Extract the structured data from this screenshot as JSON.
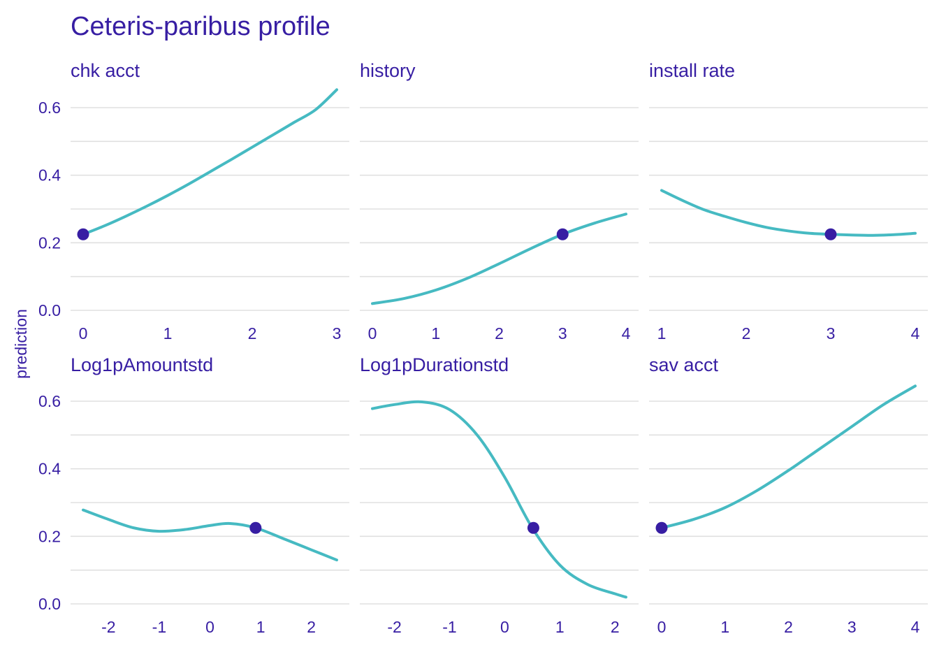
{
  "chart_data": {
    "type": "line",
    "title": "Ceteris-paribus profile",
    "ylabel": "prediction",
    "ylim": [
      0,
      0.6
    ],
    "yticks": [
      0.0,
      0.2,
      0.4,
      0.6
    ],
    "ytick_labels": [
      "0.0",
      "0.2",
      "0.4",
      "0.6"
    ],
    "grid": true,
    "colors": {
      "line": "#46bac2",
      "point": "#371ea3",
      "text": "#371ea3",
      "grid": "#e0e0e0"
    },
    "panels": [
      {
        "name": "chk_acct",
        "label": "chk  acct",
        "xlim": [
          0,
          3
        ],
        "xticks": [
          0,
          1,
          2,
          3
        ],
        "xtick_labels": [
          "0",
          "1",
          "2",
          "3"
        ],
        "x": [
          0,
          0.25,
          0.5,
          0.75,
          1.0,
          1.25,
          1.5,
          1.75,
          2.0,
          2.25,
          2.5,
          2.75,
          3.0
        ],
        "y": [
          0.225,
          0.25,
          0.278,
          0.308,
          0.34,
          0.374,
          0.41,
          0.446,
          0.483,
          0.52,
          0.557,
          0.594,
          0.653
        ],
        "point": {
          "x": 0,
          "y": 0.225
        }
      },
      {
        "name": "history",
        "label": "history",
        "xlim": [
          0,
          4
        ],
        "xticks": [
          0,
          1,
          2,
          3,
          4
        ],
        "xtick_labels": [
          "0",
          "1",
          "2",
          "3",
          "4"
        ],
        "x": [
          0,
          0.5,
          1.0,
          1.5,
          2.0,
          2.5,
          3.0,
          3.5,
          4.0
        ],
        "y": [
          0.02,
          0.035,
          0.06,
          0.095,
          0.138,
          0.183,
          0.225,
          0.258,
          0.285
        ],
        "point": {
          "x": 3,
          "y": 0.225
        }
      },
      {
        "name": "install_rate",
        "label": "install  rate",
        "xlim": [
          1,
          4
        ],
        "xticks": [
          1,
          2,
          3,
          4
        ],
        "xtick_labels": [
          "1",
          "2",
          "3",
          "4"
        ],
        "x": [
          1.0,
          1.25,
          1.5,
          1.75,
          2.0,
          2.25,
          2.5,
          2.75,
          3.0,
          3.25,
          3.5,
          3.75,
          4.0
        ],
        "y": [
          0.355,
          0.325,
          0.298,
          0.278,
          0.26,
          0.245,
          0.235,
          0.228,
          0.225,
          0.223,
          0.222,
          0.224,
          0.228
        ],
        "point": {
          "x": 3,
          "y": 0.225
        }
      },
      {
        "name": "Log1pAmountstd",
        "label": "Log1pAmountstd",
        "xlim": [
          -2.5,
          2.5
        ],
        "xticks": [
          -2,
          -1,
          0,
          1,
          2
        ],
        "xtick_labels": [
          "-2",
          "-1",
          "0",
          "1",
          "2"
        ],
        "x": [
          -2.5,
          -2.0,
          -1.5,
          -1.0,
          -0.5,
          0.0,
          0.4,
          0.9,
          1.5,
          2.0,
          2.5
        ],
        "y": [
          0.278,
          0.25,
          0.225,
          0.215,
          0.22,
          0.232,
          0.238,
          0.225,
          0.19,
          0.16,
          0.13
        ],
        "point": {
          "x": 0.9,
          "y": 0.225
        }
      },
      {
        "name": "Log1pDurationstd",
        "label": "Log1pDurationstd",
        "xlim": [
          -2.4,
          2.2
        ],
        "xticks": [
          -2,
          -1,
          0,
          1,
          2
        ],
        "xtick_labels": [
          "-2",
          "-1",
          "0",
          "1",
          "2"
        ],
        "x": [
          -2.4,
          -2.0,
          -1.5,
          -1.0,
          -0.5,
          0.0,
          0.5,
          1.0,
          1.5,
          2.0,
          2.2
        ],
        "y": [
          0.578,
          0.59,
          0.598,
          0.575,
          0.5,
          0.375,
          0.225,
          0.115,
          0.058,
          0.03,
          0.02
        ],
        "point": {
          "x": 0.52,
          "y": 0.225
        }
      },
      {
        "name": "sav_acct",
        "label": "sav  acct",
        "xlim": [
          0,
          4
        ],
        "xticks": [
          0,
          1,
          2,
          3,
          4
        ],
        "xtick_labels": [
          "0",
          "1",
          "2",
          "3",
          "4"
        ],
        "x": [
          0,
          0.5,
          1.0,
          1.5,
          2.0,
          2.5,
          3.0,
          3.5,
          4.0
        ],
        "y": [
          0.225,
          0.25,
          0.285,
          0.335,
          0.395,
          0.46,
          0.525,
          0.59,
          0.645
        ],
        "point": {
          "x": 0,
          "y": 0.225
        }
      }
    ]
  }
}
